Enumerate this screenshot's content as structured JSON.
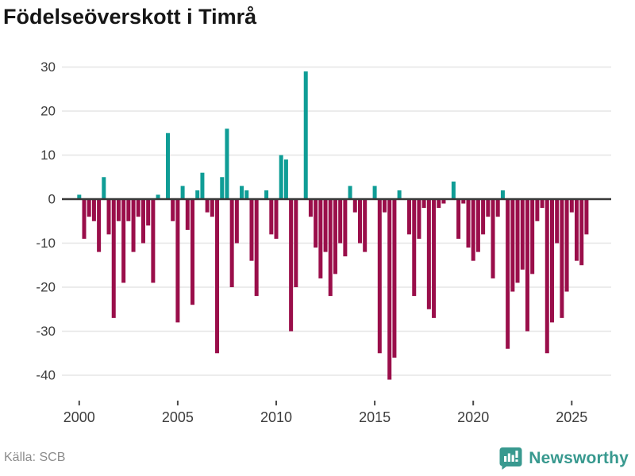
{
  "title": "Födelseöverskott i Timrå",
  "source": {
    "label": "Källa: SCB"
  },
  "branding": {
    "name": "Newsworthy",
    "icon": "bar-chart-speech-bubble-icon"
  },
  "colors": {
    "positive": "#0f9d96",
    "negative": "#9a0e4a",
    "grid": "#e6e6e6",
    "zero_axis": "#383838",
    "tick_text": "#3d3d3d",
    "source_text": "#8c8c8c",
    "brand_teal": "#38998f"
  },
  "chart_data": {
    "type": "bar",
    "title": "Födelseöverskott i Timrå",
    "frequency": "quarterly",
    "start": "2000Q1",
    "end": "2025Q4",
    "x_tick_labels": [
      "2000",
      "2005",
      "2010",
      "2015",
      "2020",
      "2025"
    ],
    "y_ticks": [
      30,
      20,
      10,
      0,
      -10,
      -20,
      -30,
      -40
    ],
    "ylim": [
      -44,
      32
    ],
    "grid": "horizontal",
    "legend": "none",
    "series": [
      {
        "name": "Födelseöverskott",
        "values": [
          1,
          -9,
          -4,
          -5,
          -12,
          5,
          -8,
          -27,
          -5,
          -19,
          -5,
          -12,
          -4,
          -10,
          -6,
          -19,
          1,
          0,
          15,
          -5,
          -28,
          3,
          -7,
          -24,
          2,
          6,
          -3,
          -4,
          -35,
          5,
          16,
          -20,
          -10,
          3,
          2,
          -14,
          -22,
          0,
          2,
          -8,
          -9,
          10,
          9,
          -30,
          -20,
          0,
          29,
          -4,
          -11,
          -18,
          -12,
          -22,
          -17,
          -10,
          -13,
          3,
          -3,
          -10,
          -12,
          0,
          3,
          -35,
          -3,
          -41,
          -36,
          2,
          0,
          -8,
          -22,
          -9,
          -2,
          -25,
          -27,
          -2,
          -1,
          0,
          4,
          -9,
          -1,
          -11,
          -14,
          -12,
          -8,
          -4,
          -18,
          -4,
          2,
          -34,
          -21,
          -19,
          -16,
          -30,
          -17,
          -5,
          -2,
          -35,
          -28,
          -10,
          -27,
          -21,
          -3,
          -14,
          -15,
          -8
        ]
      }
    ]
  }
}
